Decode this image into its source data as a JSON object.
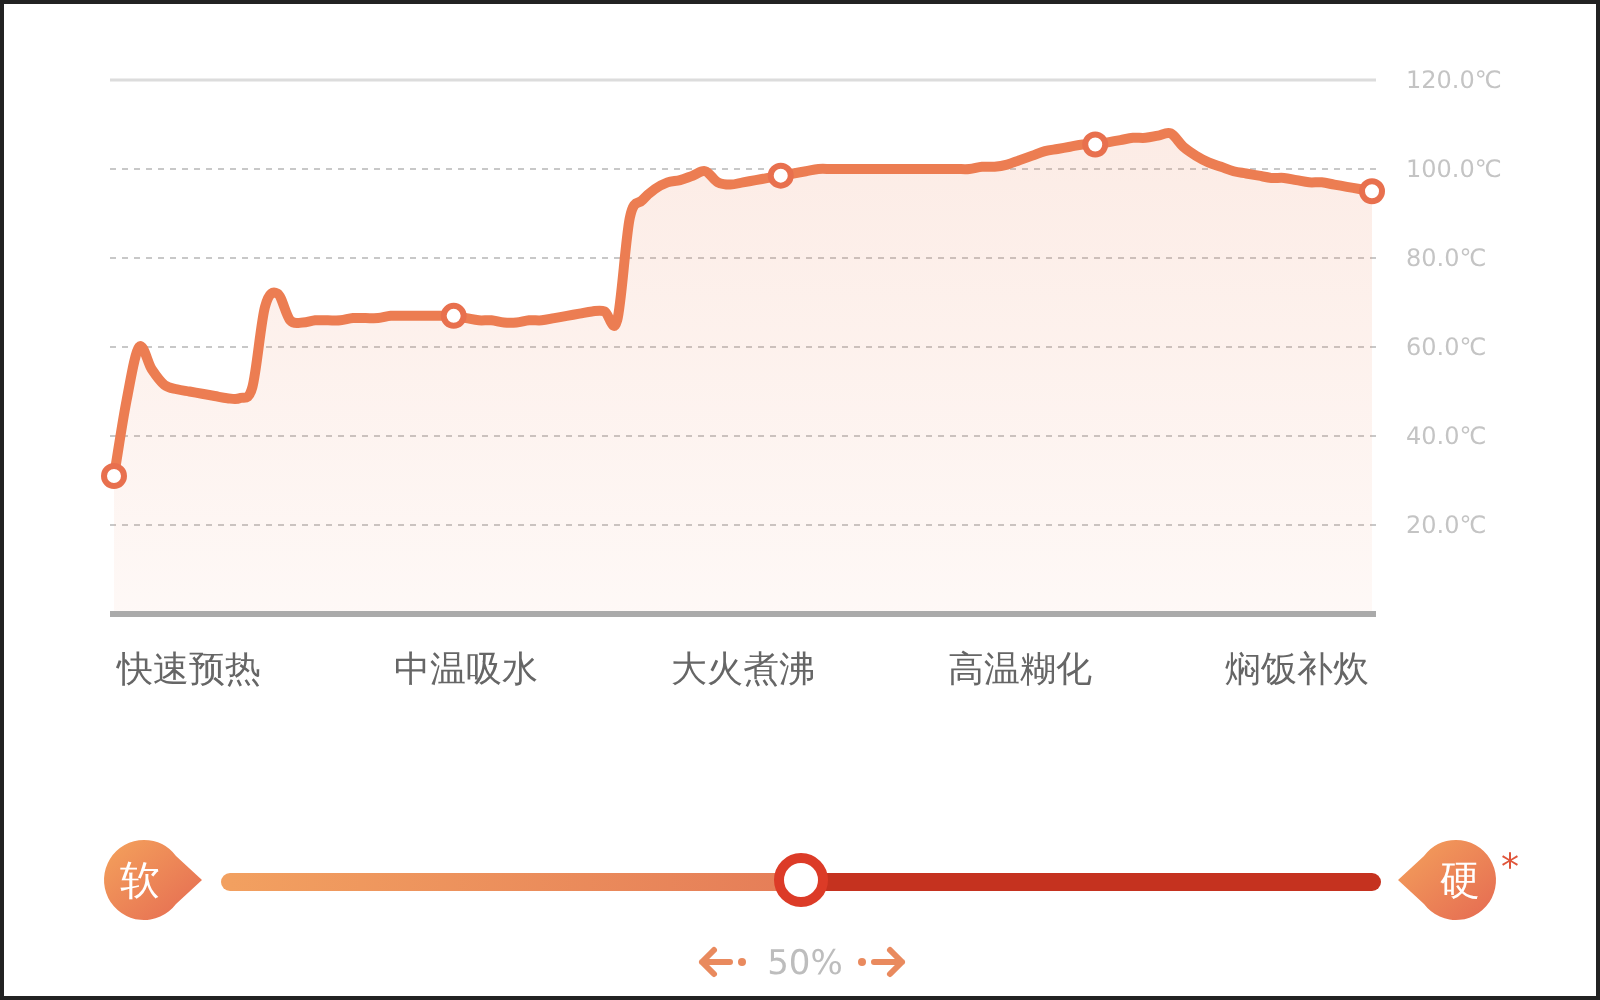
{
  "chart_data": {
    "type": "area",
    "categories": [
      null,
      null,
      null,
      null,
      null,
      null,
      "快速预热",
      null,
      null,
      null,
      null,
      null,
      null,
      null,
      null,
      null,
      null,
      null,
      null,
      null,
      null,
      null,
      null,
      null,
      null,
      null,
      null,
      null,
      "中温吸水",
      null,
      null,
      null,
      null,
      null,
      null,
      null,
      null,
      null,
      null,
      null,
      null,
      null,
      null,
      null,
      null,
      null,
      null,
      null,
      null,
      null,
      "大火煮沸",
      null,
      null,
      null,
      null,
      null,
      null,
      null,
      null,
      null,
      null,
      null,
      null,
      null,
      null,
      null,
      null,
      null,
      null,
      null,
      null,
      null,
      "高温糊化",
      null,
      null,
      null,
      null,
      null,
      null,
      null,
      null,
      null,
      null,
      null,
      null,
      null,
      null,
      null,
      null,
      null,
      null,
      null,
      null,
      null,
      "焖饭补炊",
      null,
      null,
      null,
      null,
      null,
      null
    ],
    "ylim": [
      0,
      120
    ],
    "yticks": [
      {
        "value": 20,
        "label": "20.0℃"
      },
      {
        "value": 40,
        "label": "40.0℃"
      },
      {
        "value": 60,
        "label": "60.0℃"
      },
      {
        "value": 80,
        "label": "80.0℃"
      },
      {
        "value": 100,
        "label": "100.0℃"
      },
      {
        "value": 120,
        "label": "120.0℃"
      }
    ],
    "grid": "y",
    "series": [
      {
        "color": "#ec7d52",
        "values": [
          31,
          48,
          60,
          55,
          51.5,
          50.5,
          50,
          49.5,
          49,
          48.5,
          48.5,
          51,
          69,
          72,
          66,
          65.5,
          66,
          66,
          66,
          66.5,
          66.5,
          66.5,
          67,
          67,
          67,
          67,
          67,
          67,
          66.5,
          66,
          66,
          65.5,
          65.5,
          66,
          66,
          66.5,
          67,
          67.5,
          68,
          68,
          66,
          89,
          93,
          95.5,
          97,
          97.5,
          98.5,
          99.5,
          97,
          96.5,
          97,
          97.5,
          98,
          98.5,
          99,
          99.5,
          100,
          100,
          100,
          100,
          100,
          100,
          100,
          100,
          100,
          100,
          100,
          100,
          100,
          100.5,
          100.5,
          101,
          102,
          103,
          104,
          104.5,
          105,
          105.5,
          105.5,
          106,
          106.5,
          107,
          107,
          107.5,
          108,
          105,
          103,
          101.5,
          100.5,
          99.5,
          99,
          98.5,
          98,
          98,
          97.5,
          97,
          97,
          96.5,
          96,
          95.5,
          95
        ]
      },
      {
        "type": "scatter",
        "color": "#e8704e",
        "marker": "circle",
        "values": [
          31,
          null,
          null,
          null,
          null,
          null,
          null,
          null,
          null,
          null,
          null,
          null,
          null,
          null,
          null,
          null,
          null,
          null,
          null,
          null,
          null,
          null,
          null,
          null,
          null,
          null,
          null,
          67,
          null,
          null,
          null,
          null,
          null,
          null,
          null,
          null,
          null,
          null,
          null,
          null,
          null,
          null,
          null,
          null,
          null,
          null,
          null,
          null,
          null,
          null,
          null,
          null,
          null,
          98.5,
          null,
          null,
          null,
          null,
          null,
          null,
          null,
          null,
          null,
          null,
          null,
          null,
          null,
          null,
          null,
          null,
          null,
          null,
          null,
          null,
          null,
          null,
          null,
          null,
          105.5,
          null,
          null,
          null,
          null,
          null,
          null,
          null,
          null,
          null,
          null,
          null,
          null,
          null,
          null,
          null,
          null,
          null,
          null,
          null,
          null,
          null,
          95
        ]
      }
    ],
    "annotations": [
      "软",
      "硬",
      "*",
      "50%"
    ]
  }
}
